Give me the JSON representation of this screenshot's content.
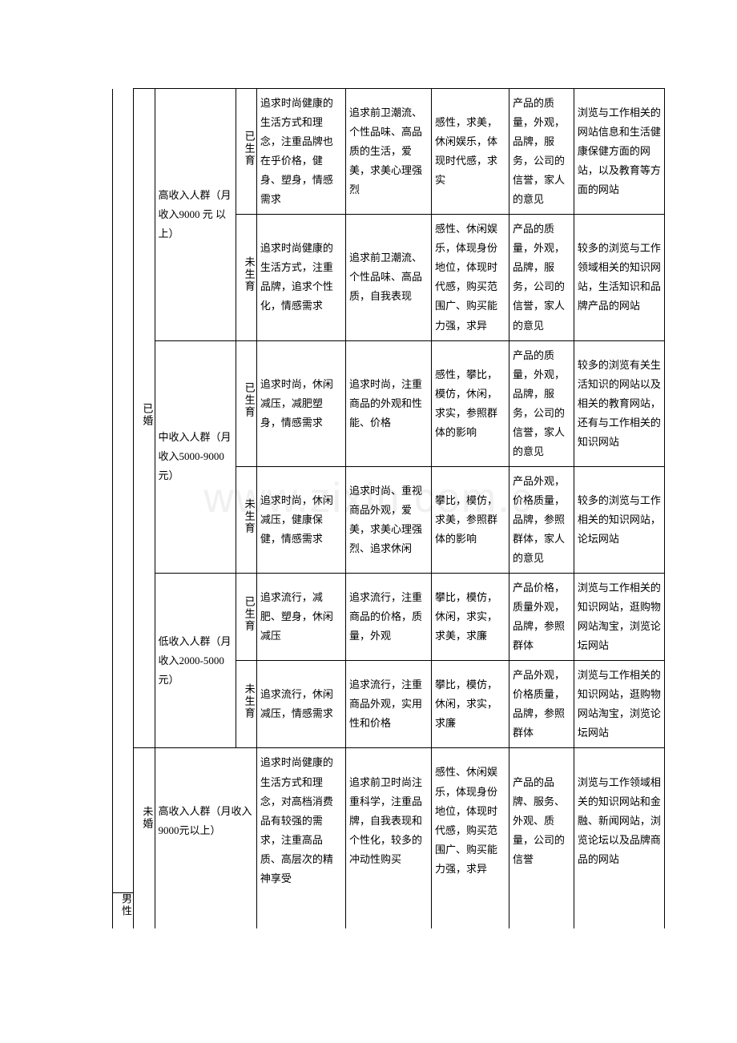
{
  "watermark": "www.zixin.com.c",
  "labels": {
    "gender_male": "男性",
    "married": "已婚",
    "unmarried": "未婚",
    "income_high": "高收入人群（月收入9000 元 以上）",
    "income_mid": "中收入人群（月收入5000-9000元）",
    "income_low": "低收入人群（月收入2000-5000元）",
    "income_high_m": "高收入人群（月收入9000元以上）",
    "has_child": "已生育",
    "no_child": "未生育"
  },
  "rows": [
    {
      "c4": "追求时尚健康的生活方式和理念，注重品牌也在乎价格，健身、塑身，情感需求",
      "c5": "追求前卫潮流、个性品味、高品质的生活，爱美，求美心理强烈",
      "c6": "感性，求美，休闲娱乐，体现时代感，求实",
      "c7": "产品的质量，外观，品牌，服务，公司的信誉，家人的意见",
      "c8": "浏览与工作相关的网站信息和生活健康保健方面的网站，以及教育等方面的网站"
    },
    {
      "c4": "追求时尚健康的生活方式，注重品牌，追求个性化，情感需求",
      "c5": "追求前卫潮流、个性品味、高品质，自我表现",
      "c6": "感性、休闲娱乐，体现身份地位，体现时代感，购买范围广、购买能力强，求异",
      "c7": "产品的质量，外观，品牌，服务，公司的信誉，家人的意见",
      "c8": "较多的浏览与工作领域相关的知识网站，生活知识和品牌产品的网站"
    },
    {
      "c4": "追求时尚，休闲减压，减肥塑身，情感需求",
      "c5": "追求时尚，注重商品的外观和性能、价格",
      "c6": "感性，攀比，模仿，休闲，求实，参照群体的影响",
      "c7": "产品的质量，外观，品牌，服务，公司的信誉，家人的意见",
      "c8": "较多的浏览有关生活知识的网站以及相关的教育网站，还有与工作相关的知识网站"
    },
    {
      "c4": "追求时尚，休闲减压，健康保健，情感需求",
      "c5": "追求时尚、重视商品外观，爱美，求美心理强烈、追求休闲",
      "c6": "攀比，模仿，求美，参照群体的影响",
      "c7": "产品外观，价格质量，品牌，参照群体，家人的意见",
      "c8": "较多的浏览与工作相关的知识网站，论坛网站"
    },
    {
      "c4": "追求流行，减肥、塑身，休闲减压",
      "c5": "追求流行，注重商品的价格，质量，外观",
      "c6": "攀比，模仿，休闲，求实，求美，求廉",
      "c7": "产品价格，质量外观，品牌，参照群体",
      "c8": "浏览与工作相关的知识网站，逛购物网站淘宝，浏览论坛网站"
    },
    {
      "c4": "追求流行，休闲减压，情感需求",
      "c5": "追求流行，注重商品外观，实用性和价格",
      "c6": "攀比，模仿，休闲，求实，求廉",
      "c7": "产品外观，价格质量，品牌，参照群体",
      "c8": "浏览与工作相关的知识网站，逛购物网站淘宝，浏览论坛网站"
    },
    {
      "c4": "追求时尚健康的生活方式和理念，对高档消费品有较强的需求，注重高品质、高层次的精神享受",
      "c5": "追求前卫时尚注重科学，注重品牌，自我表现和个性化，较多的冲动性购买",
      "c6": "感性、休闲娱乐，体现身份地位，体现时代感，购买范围广、购买能力强，求异",
      "c7": "产品的品牌、服务、外观、质量，公司的信誉",
      "c8": "浏览与工作领域相关的知识网站和金融、新闻网站，浏览论坛以及品牌商品的网站"
    }
  ]
}
